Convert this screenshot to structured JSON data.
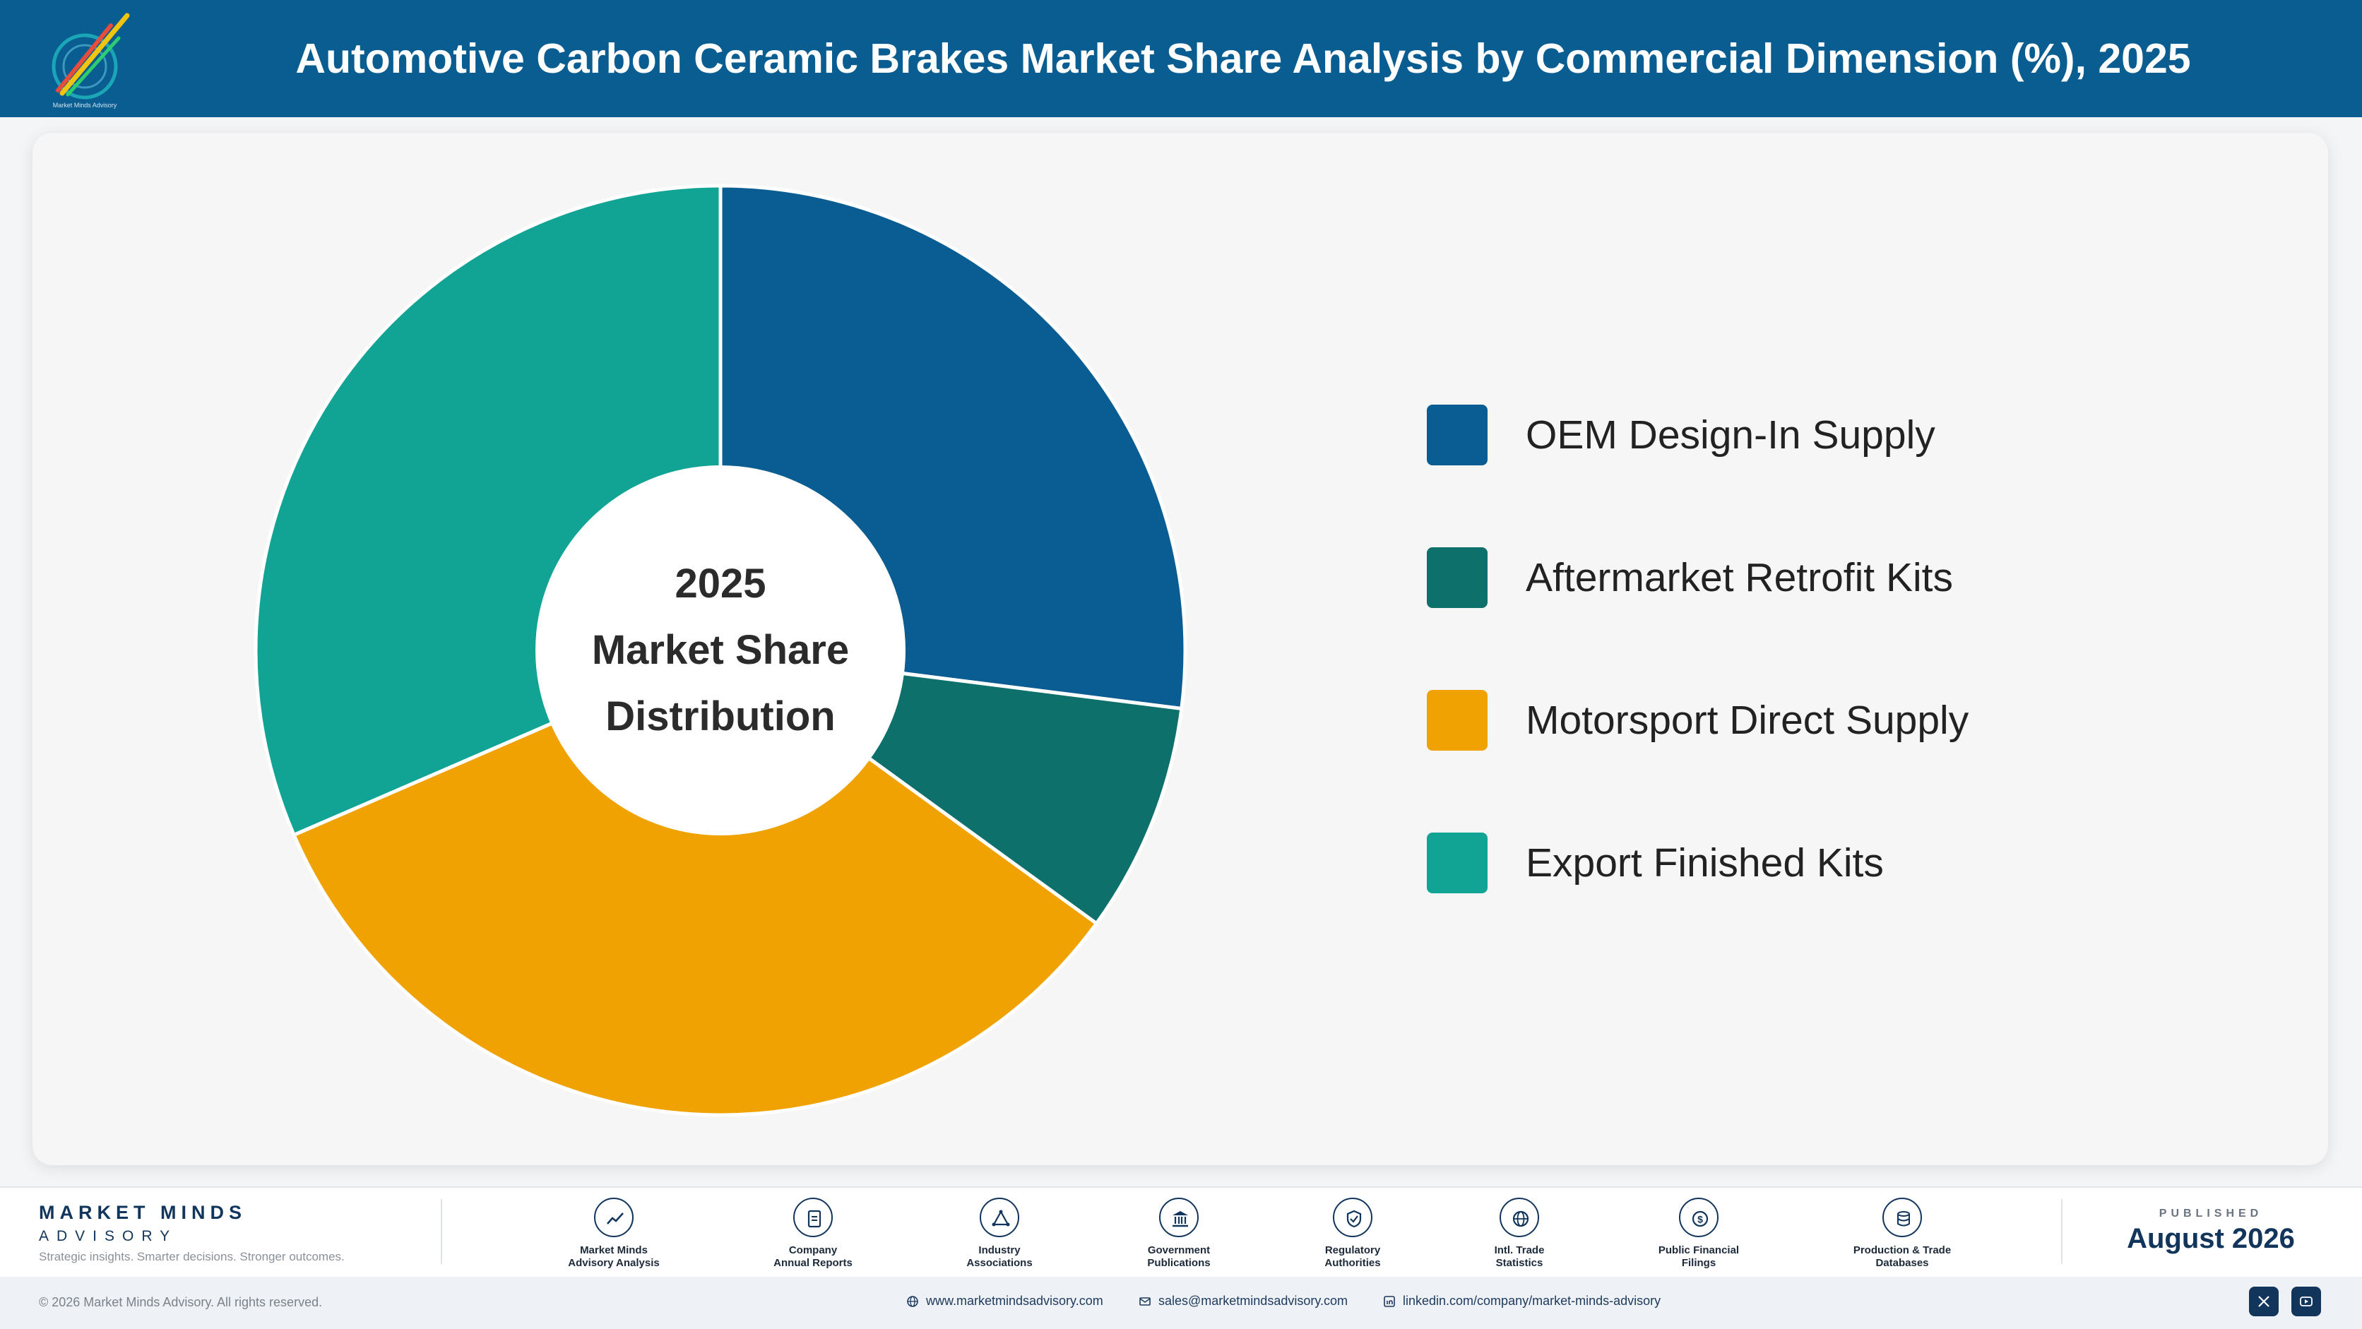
{
  "header": {
    "title": "Automotive Carbon Ceramic Brakes Market Share Analysis by Commercial Dimension (%), 2025",
    "logo_caption": "Market Minds Advisory"
  },
  "chart_data": {
    "type": "pie",
    "title": "Automotive Carbon Ceramic Brakes Market Share Analysis by Commercial Dimension (%), 2025",
    "center_label": [
      "2025",
      "Market Share",
      "Distribution"
    ],
    "legend_position": "right",
    "categories": [
      "OEM Design-In Supply",
      "Aftermarket Retrofit Kits",
      "Motorsport Direct Supply",
      "Export Finished Kits"
    ],
    "values": [
      27.0,
      8.0,
      33.5,
      31.5
    ],
    "colors": [
      "#0a5d92",
      "#0d706b",
      "#f0a202",
      "#11a394"
    ]
  },
  "footer": {
    "brand_name": "MARKET MINDS",
    "brand_sub": "ADVISORY",
    "tagline": "Strategic insights. Smarter decisions. Stronger outcomes.",
    "sources": [
      {
        "line1": "Market Minds",
        "line2": "Advisory Analysis",
        "icon": "trend-line-icon"
      },
      {
        "line1": "Company",
        "line2": "Annual Reports",
        "icon": "document-icon"
      },
      {
        "line1": "Industry",
        "line2": "Associations",
        "icon": "network-icon"
      },
      {
        "line1": "Government",
        "line2": "Publications",
        "icon": "government-building-icon"
      },
      {
        "line1": "Regulatory",
        "line2": "Authorities",
        "icon": "shield-check-icon"
      },
      {
        "line1": "Intl. Trade",
        "line2": "Statistics",
        "icon": "globe-icon"
      },
      {
        "line1": "Public Financial",
        "line2": "Filings",
        "icon": "dollar-coin-icon"
      },
      {
        "line1": "Production & Trade",
        "line2": "Databases",
        "icon": "database-icon"
      }
    ],
    "published_label": "PUBLISHED",
    "published_date": "August 2026",
    "copyright": "© 2026 Market Minds Advisory. All rights reserved.",
    "website": "www.marketmindsadvisory.com",
    "email": "sales@marketmindsadvisory.com",
    "linkedin": "linkedin.com/company/market-minds-advisory"
  }
}
